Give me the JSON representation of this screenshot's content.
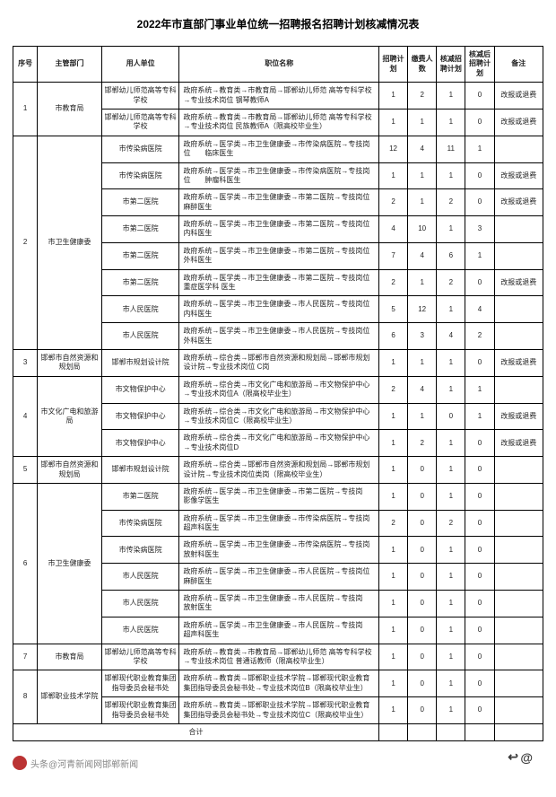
{
  "title": "2022年市直部门事业单位统一招聘报名招聘计划核减情况表",
  "headers": {
    "seq": "序号",
    "dept": "主管部门",
    "org": "用人单位",
    "pos": "职位名称",
    "plan": "招聘计划",
    "apply": "缴费人数",
    "reduce": "核减招聘计划",
    "after": "核减后招聘计划",
    "remark": "备注"
  },
  "total_label": "合计",
  "footer_source": "头条@河青新闻网邯郸新闻",
  "groups": [
    {
      "seq": "1",
      "dept": "市教育局",
      "rows": [
        {
          "org": "邯郸幼儿师范高等专科学校",
          "pos": "政府系统→教育类→市教育局→邯郸幼儿师范 高等专科学校→专业技术岗位 钢琴教师A",
          "plan": "1",
          "apply": "2",
          "reduce": "1",
          "after": "0",
          "remark": "改报或退费"
        },
        {
          "org": "邯郸幼儿师范高等专科学校",
          "pos": "政府系统→教育类→市教育局→邯郸幼儿师范 高等专科学校→专业技术岗位 民族教师A（限高校毕业生）",
          "plan": "1",
          "apply": "1",
          "reduce": "1",
          "after": "0",
          "remark": "改报或退费"
        }
      ]
    },
    {
      "seq": "2",
      "dept": "市卫生健康委",
      "rows": [
        {
          "org": "市传染病医院",
          "pos": "政府系统→医学类→市卫生健康委→市传染病医院→专技岗位　　临床医生",
          "plan": "12",
          "apply": "4",
          "reduce": "11",
          "after": "1",
          "remark": ""
        },
        {
          "org": "市传染病医院",
          "pos": "政府系统→医学类→市卫生健康委→市传染病医院→专技岗位　　肿瘤科医生",
          "plan": "1",
          "apply": "1",
          "reduce": "1",
          "after": "0",
          "remark": "改报或退费"
        },
        {
          "org": "市第二医院",
          "pos": "政府系统→医学类→市卫生健康委→市第二医院→专技岗位　　麻醉医生",
          "plan": "2",
          "apply": "1",
          "reduce": "2",
          "after": "0",
          "remark": "改报或退费"
        },
        {
          "org": "市第二医院",
          "pos": "政府系统→医学类→市卫生健康委→市第二医院→专技岗位　　内科医生",
          "plan": "4",
          "apply": "10",
          "reduce": "1",
          "after": "3",
          "remark": ""
        },
        {
          "org": "市第二医院",
          "pos": "政府系统→医学类→市卫生健康委→市第二医院→专技岗位　　外科医生",
          "plan": "7",
          "apply": "4",
          "reduce": "6",
          "after": "1",
          "remark": ""
        },
        {
          "org": "市第二医院",
          "pos": "政府系统→医学类→市卫生健康委→市第二医院→专技岗位　　重症医学科 医生",
          "plan": "2",
          "apply": "1",
          "reduce": "2",
          "after": "0",
          "remark": "改报或退费"
        },
        {
          "org": "市人民医院",
          "pos": "政府系统→医学类→市卫生健康委→市人民医院→专技岗位　　内科医生",
          "plan": "5",
          "apply": "12",
          "reduce": "1",
          "after": "4",
          "remark": ""
        },
        {
          "org": "市人民医院",
          "pos": "政府系统→医学类→市卫生健康委→市人民医院→专技岗位　　外科医生",
          "plan": "6",
          "apply": "3",
          "reduce": "4",
          "after": "2",
          "remark": ""
        }
      ]
    },
    {
      "seq": "3",
      "dept": "邯郸市自然资源和规划局",
      "rows": [
        {
          "org": "邯郸市规划设计院",
          "pos": "政府系统→综合类→邯郸市自然资源和规划局→邯郸市规划设计院→专业技术岗位 C岗",
          "plan": "1",
          "apply": "1",
          "reduce": "1",
          "after": "0",
          "remark": "改报或退费"
        }
      ]
    },
    {
      "seq": "4",
      "dept": "市文化广电和旅游局",
      "rows": [
        {
          "org": "市文物保护中心",
          "pos": "政府系统→综合类→市文化广电和旅游局→市文物保护中心→专业技术岗位A（限高校毕业生）",
          "plan": "2",
          "apply": "4",
          "reduce": "1",
          "after": "1",
          "remark": ""
        },
        {
          "org": "市文物保护中心",
          "pos": "政府系统→综合类→市文化广电和旅游局→市文物保护中心→专业技术岗位C（限高校毕业生）",
          "plan": "1",
          "apply": "1",
          "reduce": "0",
          "after": "1",
          "remark": "改报或退费"
        },
        {
          "org": "市文物保护中心",
          "pos": "政府系统→综合类→市文化广电和旅游局→市文物保护中心→专业技术岗位D",
          "plan": "1",
          "apply": "2",
          "reduce": "1",
          "after": "0",
          "remark": "改报或退费"
        }
      ]
    },
    {
      "seq": "5",
      "dept": "邯郸市自然资源和规划局",
      "rows": [
        {
          "org": "邯郸市规划设计院",
          "pos": "政府系统→综合类→邯郸市自然资源和规划局→邯郸市规划设计院→专业技术岗位类岗（限高校毕业生）",
          "plan": "1",
          "apply": "0",
          "reduce": "1",
          "after": "0",
          "remark": ""
        }
      ]
    },
    {
      "seq": "6",
      "dept": "市卫生健康委",
      "rows": [
        {
          "org": "市第二医院",
          "pos": "政府系统→医学类→市卫生健康委→市第二医院→专技岗　　影像学医生",
          "plan": "1",
          "apply": "0",
          "reduce": "1",
          "after": "0",
          "remark": ""
        },
        {
          "org": "市传染病医院",
          "pos": "政府系统→医学类→市卫生健康委→市传染病医院→专技岗　　超声科医生",
          "plan": "2",
          "apply": "0",
          "reduce": "2",
          "after": "0",
          "remark": ""
        },
        {
          "org": "市传染病医院",
          "pos": "政府系统→医学类→市卫生健康委→市传染病医院→专技岗　　放射科医生",
          "plan": "1",
          "apply": "0",
          "reduce": "1",
          "after": "0",
          "remark": ""
        },
        {
          "org": "市人民医院",
          "pos": "政府系统→医学类→市卫生健康委→市人民医院→专技岗位　　麻醉医生",
          "plan": "1",
          "apply": "0",
          "reduce": "1",
          "after": "0",
          "remark": ""
        },
        {
          "org": "市人民医院",
          "pos": "政府系统→医学类→市卫生健康委→市人民医院→专技岗　　放射医生",
          "plan": "1",
          "apply": "0",
          "reduce": "1",
          "after": "0",
          "remark": ""
        },
        {
          "org": "市人民医院",
          "pos": "政府系统→医学类→市卫生健康委→市人民医院→专技岗　　超声科医生",
          "plan": "1",
          "apply": "0",
          "reduce": "1",
          "after": "0",
          "remark": ""
        }
      ]
    },
    {
      "seq": "7",
      "dept": "市教育局",
      "rows": [
        {
          "org": "邯郸幼儿师范高等专科学校",
          "pos": "政府系统→教育类→市教育局→邯郸幼儿师范 高等专科学校→专业技术岗位 普通话教师（限高校毕业生）",
          "plan": "1",
          "apply": "0",
          "reduce": "1",
          "after": "0",
          "remark": ""
        }
      ]
    },
    {
      "seq": "8",
      "dept": "邯郸职业技术学院",
      "rows": [
        {
          "org": "邯郸现代职业教育集团指导委员会秘书处",
          "pos": "政府系统→教育类→邯郸职业技术学院→邯郸现代职业教育集团指导委员会秘书处→专业技术岗位B（限高校毕业生）",
          "plan": "1",
          "apply": "0",
          "reduce": "1",
          "after": "0",
          "remark": ""
        },
        {
          "org": "邯郸现代职业教育集团指导委员会秘书处",
          "pos": "政府系统→教育类→邯郸职业技术学院→邯郸现代职业教育集团指导委员会秘书处→专业技术岗位C（限高校毕业生）",
          "plan": "1",
          "apply": "0",
          "reduce": "1",
          "after": "0",
          "remark": ""
        }
      ]
    }
  ]
}
